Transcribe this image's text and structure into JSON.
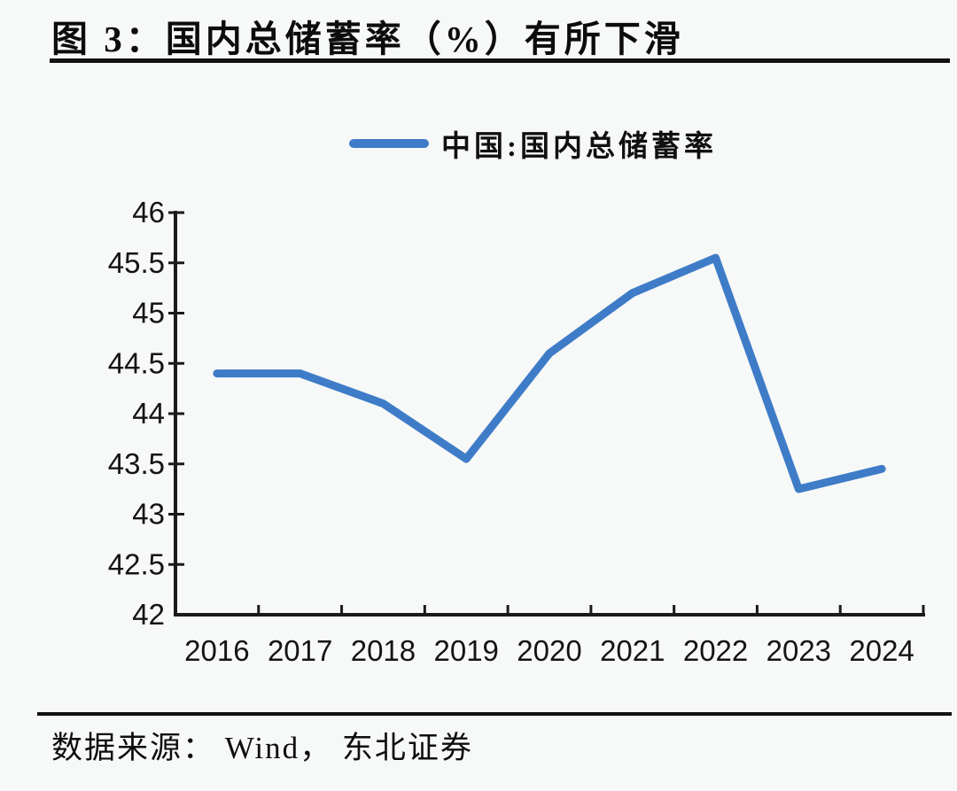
{
  "figure": {
    "title": "图 3：国内总储蓄率（%）有所下滑",
    "source_label": "数据来源： Wind， 东北证券"
  },
  "chart_data": {
    "type": "line",
    "title": "图 3：国内总储蓄率（%）有所下滑",
    "categories": [
      2016,
      2017,
      2018,
      2019,
      2020,
      2021,
      2022,
      2023,
      2024
    ],
    "series": [
      {
        "name": "中国:国内总储蓄率",
        "values": [
          44.4,
          44.4,
          44.1,
          43.55,
          44.6,
          45.2,
          45.55,
          43.25,
          43.45
        ]
      }
    ],
    "xlabel": "",
    "ylabel": "",
    "ylim": [
      42,
      46
    ],
    "ytick_step": 0.5,
    "grid": false,
    "legend_position": "top-center",
    "line_color": "#3E7CC8",
    "axis_color": "#1A1A1A",
    "annotations": {
      "source": "数据来源： Wind， 东北证券"
    }
  }
}
